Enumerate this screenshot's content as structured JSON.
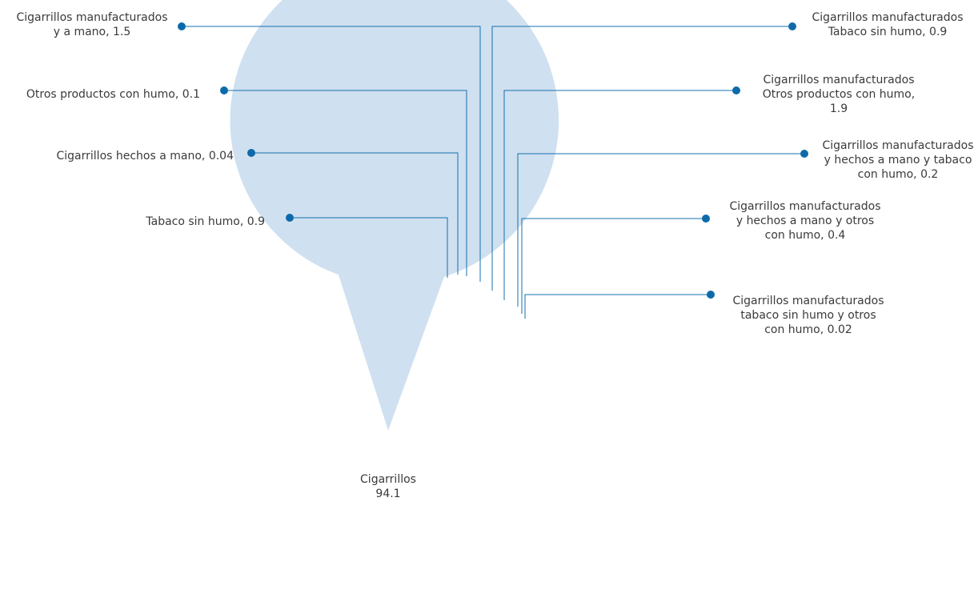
{
  "chart_data": {
    "type": "pie",
    "title": "",
    "exploded_start_angle_deg": 17,
    "slices": [
      {
        "label": [
          "Cigarrillos manufacturados",
          "tabaco sin humo y otros",
          "con humo, 0.02"
        ],
        "value": 0.02,
        "color": "#8a8a8a"
      },
      {
        "label": [
          "Cigarrillos manufacturados",
          "y hechos a mano y otros",
          "con humo, 0.4"
        ],
        "value": 0.4,
        "color": "#0a6aa8"
      },
      {
        "label": [
          "Cigarrillos manufacturados",
          "y hechos a mano y tabaco",
          "con humo, 0.2"
        ],
        "value": 0.2,
        "color": "#3c3c3c"
      },
      {
        "label": [
          "Cigarrillos manufacturados",
          "Otros productos con humo,",
          "1.9"
        ],
        "value": 1.9,
        "color": "#d3d3d3"
      },
      {
        "label": [
          "Cigarrillos manufacturados",
          "Tabaco sin humo, 0.9"
        ],
        "value": 0.9,
        "color": "#4d98cd"
      },
      {
        "label": [
          "Cigarrillos manufacturados",
          "y a mano, 1.5"
        ],
        "value": 1.5,
        "color": "#b0b0b0"
      },
      {
        "label": [
          "Otros productos con humo, 0.1"
        ],
        "value": 0.1,
        "color": "#1a6fa6"
      },
      {
        "label": [
          "Cigarrillos hechos a mano, 0.04"
        ],
        "value": 0.04,
        "color": "#8d8d8d"
      },
      {
        "label": [
          "Tabaco sin humo, 0.9"
        ],
        "value": 0.9,
        "color": "#c2d7ea"
      },
      {
        "label": [
          "Cigarrillos",
          "94.1"
        ],
        "value": 94.1,
        "color": "#cfe0f0",
        "inside": true
      }
    ],
    "colors": {
      "leader": "#1570ac",
      "dot": "#0d6aaa",
      "text": "#3a3a3a"
    }
  }
}
